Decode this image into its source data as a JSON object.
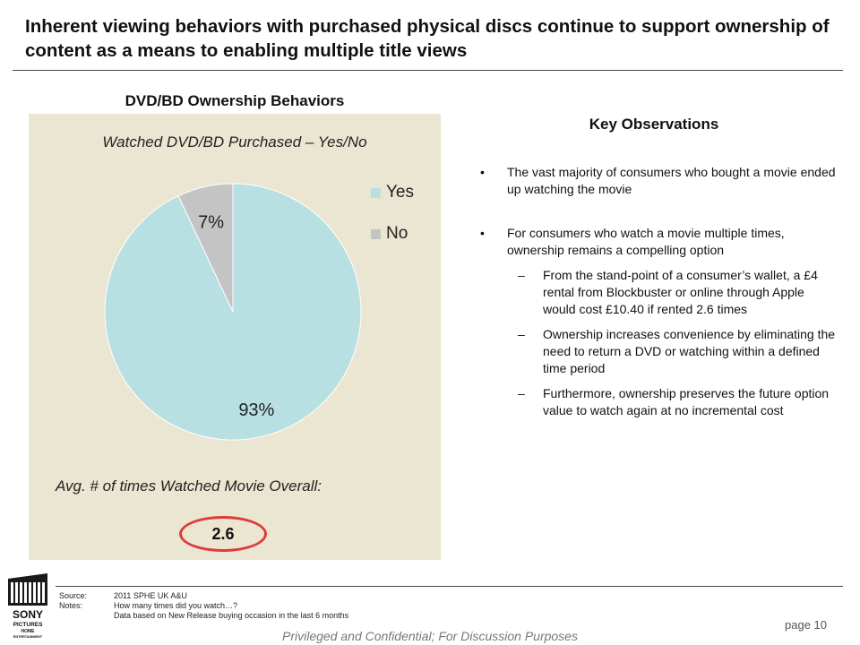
{
  "title": "Inherent viewing behaviors with purchased physical discs continue to support ownership of content as a means to enabling multiple title views",
  "chart_data": {
    "type": "pie",
    "title": "DVD/BD Ownership Behaviors",
    "subtitle": "Watched DVD/BD Purchased – Yes/No",
    "categories": [
      "Yes",
      "No"
    ],
    "values": [
      93,
      7
    ],
    "data_labels": [
      "93%",
      "7%"
    ],
    "colors": [
      "#b8e0e2",
      "#c4c4c4"
    ],
    "legend_position": "right"
  },
  "avg": {
    "label": "Avg. # of times Watched Movie Overall:",
    "value": "2.6",
    "highlight_color": "#e03a3a"
  },
  "observations": {
    "title": "Key Observations",
    "bullet_marker": "•",
    "sub_marker": "–",
    "bullets": [
      {
        "text": "The vast majority of consumers who bought a movie ended up watching the movie"
      },
      {
        "text": "For consumers who watch a movie multiple times, ownership remains a compelling option"
      }
    ],
    "sub_bullets": [
      {
        "text": "From the stand-point of a consumer’s wallet, a £4 rental from Blockbuster or online through Apple would cost £10.40 if rented 2.6 times"
      },
      {
        "text": "Ownership increases convenience by eliminating the need to return a DVD or watching within a defined time period"
      },
      {
        "text": "Furthermore, ownership preserves the future option value to watch again at no incremental cost"
      }
    ]
  },
  "footer": {
    "source_key": "Source:",
    "source_value": "2011 SPHE UK A&U",
    "notes_key": "Notes:",
    "notes_line1": "How many times did you watch…?",
    "notes_line2": "Data based on New Release buying occasion in the last 6 months",
    "page": "page 10",
    "confidential": "Privileged and Confidential; For Discussion Purposes",
    "logo_lines": [
      "SONY",
      "PICTURES",
      "HOME",
      "ENTERTAINMENT"
    ]
  }
}
